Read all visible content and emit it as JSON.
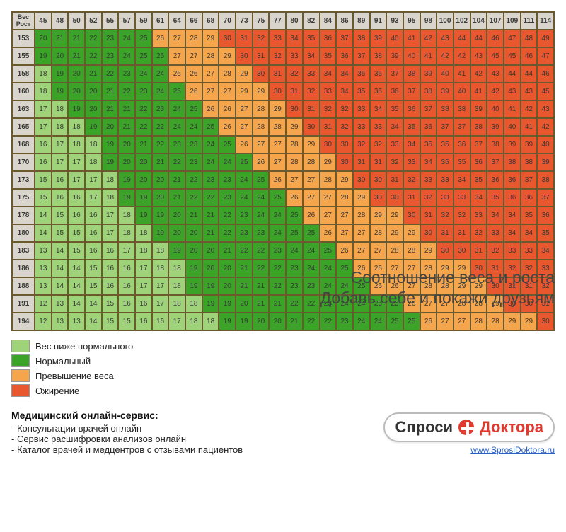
{
  "chart": {
    "type": "heatmap",
    "corner_label": "Вес\nРост",
    "weights": [
      45,
      48,
      50,
      52,
      55,
      57,
      59,
      61,
      64,
      66,
      68,
      70,
      73,
      75,
      77,
      80,
      82,
      84,
      86,
      89,
      91,
      93,
      95,
      98,
      100,
      102,
      104,
      107,
      109,
      111,
      114
    ],
    "heights": [
      153,
      155,
      158,
      160,
      163,
      165,
      168,
      170,
      173,
      175,
      178,
      180,
      183,
      186,
      188,
      191,
      194
    ],
    "values": [
      [
        20,
        21,
        21,
        22,
        23,
        24,
        25,
        26,
        27,
        28,
        29,
        30,
        31,
        32,
        33,
        34,
        35,
        36,
        37,
        38,
        39,
        40,
        41,
        42,
        43,
        44,
        44,
        46,
        47,
        48,
        49
      ],
      [
        19,
        20,
        21,
        22,
        23,
        24,
        25,
        25,
        27,
        27,
        28,
        29,
        30,
        31,
        32,
        33,
        34,
        35,
        36,
        37,
        38,
        39,
        40,
        41,
        42,
        42,
        43,
        45,
        45,
        46,
        47
      ],
      [
        18,
        19,
        20,
        21,
        22,
        23,
        24,
        24,
        26,
        26,
        27,
        28,
        29,
        30,
        31,
        32,
        33,
        34,
        34,
        36,
        36,
        37,
        38,
        39,
        40,
        41,
        42,
        43,
        44,
        44,
        46
      ],
      [
        18,
        19,
        20,
        20,
        21,
        22,
        23,
        24,
        25,
        26,
        27,
        27,
        29,
        29,
        30,
        31,
        32,
        33,
        34,
        35,
        36,
        36,
        37,
        38,
        39,
        40,
        41,
        42,
        43,
        43,
        45
      ],
      [
        17,
        18,
        19,
        20,
        21,
        21,
        22,
        23,
        24,
        25,
        26,
        26,
        27,
        28,
        29,
        30,
        31,
        32,
        32,
        33,
        34,
        35,
        36,
        37,
        38,
        38,
        39,
        40,
        41,
        42,
        43
      ],
      [
        17,
        18,
        18,
        19,
        20,
        21,
        22,
        22,
        24,
        24,
        25,
        26,
        27,
        28,
        28,
        29,
        30,
        31,
        32,
        33,
        33,
        34,
        35,
        36,
        37,
        37,
        38,
        39,
        40,
        41,
        42
      ],
      [
        16,
        17,
        18,
        18,
        19,
        20,
        21,
        22,
        23,
        23,
        24,
        25,
        26,
        27,
        27,
        28,
        29,
        30,
        30,
        32,
        32,
        33,
        34,
        35,
        35,
        36,
        37,
        38,
        39,
        39,
        40
      ],
      [
        16,
        17,
        17,
        18,
        19,
        20,
        20,
        21,
        22,
        23,
        24,
        24,
        25,
        26,
        27,
        28,
        28,
        29,
        30,
        31,
        31,
        32,
        33,
        34,
        35,
        35,
        36,
        37,
        38,
        38,
        39
      ],
      [
        15,
        16,
        17,
        17,
        18,
        19,
        20,
        20,
        21,
        22,
        23,
        23,
        24,
        25,
        26,
        27,
        27,
        28,
        29,
        30,
        30,
        31,
        32,
        33,
        33,
        34,
        35,
        36,
        36,
        37,
        38
      ],
      [
        15,
        16,
        16,
        17,
        18,
        19,
        19,
        20,
        21,
        22,
        22,
        23,
        24,
        24,
        25,
        26,
        27,
        27,
        28,
        29,
        30,
        30,
        31,
        32,
        33,
        33,
        34,
        35,
        36,
        36,
        37
      ],
      [
        14,
        15,
        16,
        16,
        17,
        18,
        19,
        19,
        20,
        21,
        21,
        22,
        23,
        24,
        24,
        25,
        26,
        27,
        27,
        28,
        29,
        29,
        30,
        31,
        32,
        32,
        33,
        34,
        34,
        35,
        36
      ],
      [
        14,
        15,
        15,
        16,
        17,
        18,
        18,
        19,
        20,
        20,
        21,
        22,
        23,
        23,
        24,
        25,
        25,
        26,
        27,
        27,
        28,
        29,
        29,
        30,
        31,
        31,
        32,
        33,
        34,
        34,
        35
      ],
      [
        13,
        14,
        15,
        16,
        16,
        17,
        18,
        18,
        19,
        20,
        20,
        21,
        22,
        22,
        23,
        24,
        24,
        25,
        26,
        27,
        27,
        28,
        28,
        29,
        30,
        30,
        31,
        32,
        33,
        33,
        34
      ],
      [
        13,
        14,
        14,
        15,
        16,
        16,
        17,
        18,
        18,
        19,
        20,
        20,
        21,
        22,
        22,
        23,
        24,
        24,
        25,
        26,
        26,
        27,
        27,
        28,
        29,
        29,
        30,
        31,
        32,
        32,
        33
      ],
      [
        13,
        14,
        14,
        15,
        16,
        16,
        17,
        17,
        18,
        19,
        19,
        20,
        21,
        21,
        22,
        23,
        23,
        24,
        24,
        25,
        26,
        26,
        27,
        28,
        28,
        29,
        29,
        30,
        31,
        31,
        32
      ],
      [
        12,
        13,
        14,
        14,
        15,
        16,
        16,
        17,
        18,
        18,
        19,
        19,
        20,
        21,
        21,
        22,
        22,
        23,
        24,
        24,
        25,
        25,
        26,
        27,
        27,
        28,
        28,
        29,
        30,
        30,
        31
      ],
      [
        12,
        13,
        13,
        14,
        15,
        15,
        16,
        16,
        17,
        18,
        18,
        19,
        19,
        20,
        20,
        21,
        22,
        22,
        23,
        24,
        24,
        25,
        25,
        26,
        27,
        27,
        28,
        28,
        29,
        29,
        30
      ]
    ],
    "colors": {
      "underweight": "#9fd37a",
      "normal": "#3aa328",
      "overweight": "#f5a54b",
      "obese": "#e9572f",
      "header_bg": "#d9d5cc",
      "grid_border": "#6b5a2e",
      "text": "#3a3a3a"
    },
    "thresholds": {
      "under_max": 18,
      "normal_max": 25,
      "over_max": 29
    }
  },
  "legend": {
    "items": [
      {
        "label": "Вес ниже нормального",
        "color": "#9fd37a"
      },
      {
        "label": "Нормальный",
        "color": "#3aa328"
      },
      {
        "label": "Превышение веса",
        "color": "#f5a54b"
      },
      {
        "label": "Ожирение",
        "color": "#e9572f"
      }
    ]
  },
  "caption": {
    "line1": "Соотношение веса и роста",
    "line2": "Добавь себе и покажи друзьям"
  },
  "service": {
    "title": "Медицинский онлайн-сервис:",
    "items": [
      "Консультации врачей онлайн",
      "Сервис расшифровки анализов онлайн",
      "Каталог врачей и медцентров с отзывами пациентов"
    ]
  },
  "logo": {
    "part1": "Спроси",
    "part2": "Доктора",
    "url": "www.SprosiDoktora.ru"
  }
}
